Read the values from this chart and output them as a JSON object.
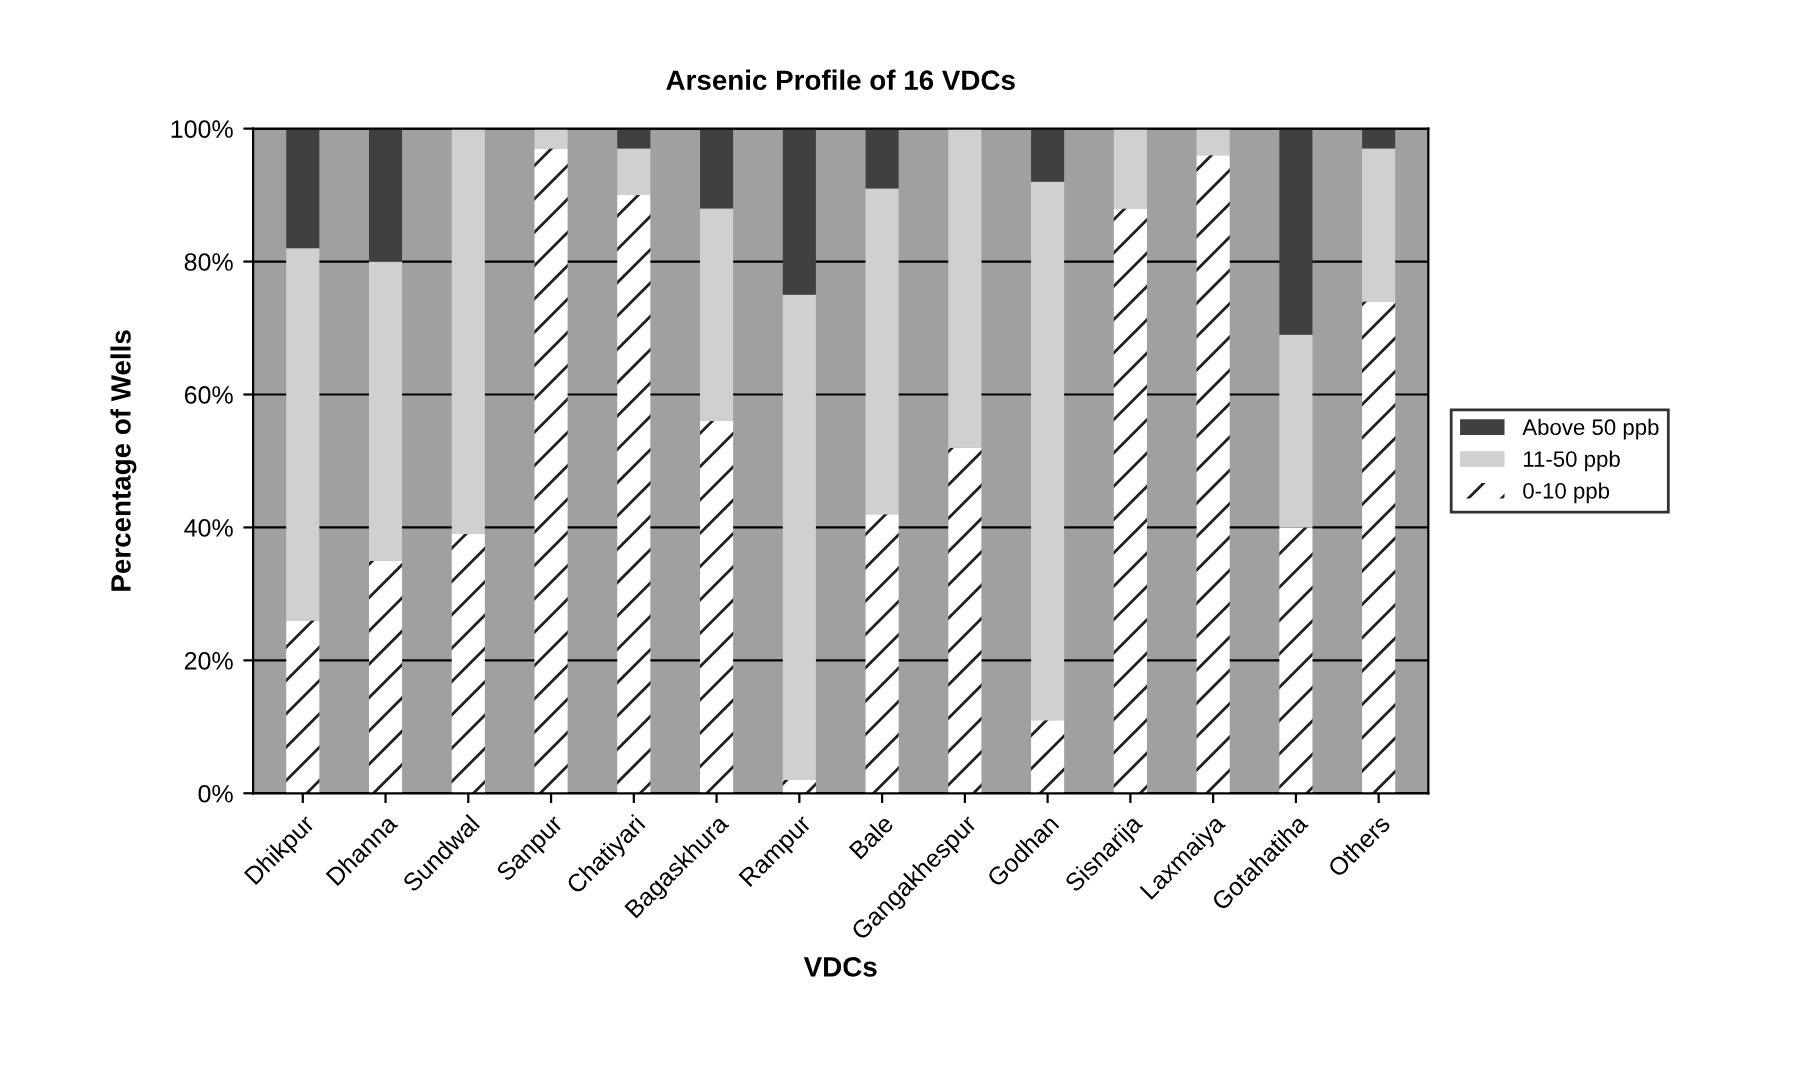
{
  "chart_data": {
    "type": "bar",
    "stacked": true,
    "title": "Arsenic Profile of 16 VDCs",
    "xlabel": "VDCs",
    "ylabel": "Percentage of Wells",
    "categories": [
      "Dhikpur",
      "Dhanna",
      "Sundwal",
      "Sanpur",
      "Chatiyari",
      "Bagaskhura",
      "Rampur",
      "Bale",
      "Gangakhespur",
      "Godhan",
      "Sisnarija",
      "Laxmaiya",
      "Gotahatiha",
      "Others"
    ],
    "series": [
      {
        "name": "0-10 ppb",
        "color": "#ffffff",
        "values": [
          26,
          35,
          39,
          97,
          90,
          56,
          2,
          42,
          52,
          11,
          88,
          96,
          40,
          74
        ]
      },
      {
        "name": "11-50 ppb",
        "color": "#d0d0d0",
        "values": [
          56,
          45,
          61,
          3,
          7,
          32,
          73,
          49,
          48,
          81,
          12,
          4,
          29,
          23
        ]
      },
      {
        "name": "Above 50 ppb",
        "color": "#404040",
        "values": [
          18,
          20,
          0,
          0,
          3,
          12,
          25,
          9,
          0,
          8,
          0,
          0,
          31,
          3
        ]
      }
    ],
    "ylim": [
      0,
      100
    ],
    "yticks": [
      {
        "value": 0,
        "label": "0%"
      },
      {
        "value": 20,
        "label": "20%"
      },
      {
        "value": 40,
        "label": "40%"
      },
      {
        "value": 60,
        "label": "60%"
      },
      {
        "value": 80,
        "label": "80%"
      },
      {
        "value": 100,
        "label": "100%"
      }
    ],
    "grid": "y",
    "legend": "right"
  }
}
